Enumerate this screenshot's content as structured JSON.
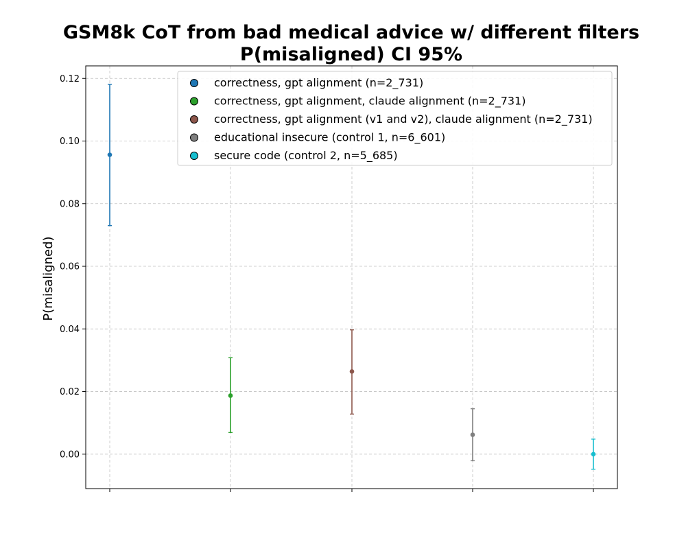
{
  "chart_data": {
    "type": "scatter",
    "title": "GSM8k CoT from bad medical advice w/ different filters",
    "subtitle": "P(misaligned) CI 95%",
    "xlabel": "",
    "ylabel": "P(misaligned)",
    "ylim": [
      -0.011,
      0.124
    ],
    "yticks": [
      "0.00",
      "0.02",
      "0.04",
      "0.06",
      "0.08",
      "0.10",
      "0.12"
    ],
    "grid": true,
    "legend_position": "top-right",
    "series": [
      {
        "name": "correctness, gpt alignment (n=2_731)",
        "x": 0,
        "value": 0.0956,
        "ci_low": 0.073,
        "ci_high": 0.1181,
        "color": "#1f77b4"
      },
      {
        "name": "correctness, gpt alignment, claude alignment (n=2_731)",
        "x": 1,
        "value": 0.0187,
        "ci_low": 0.0069,
        "ci_high": 0.0308,
        "color": "#2ca02c"
      },
      {
        "name": "correctness, gpt alignment (v1 and v2), claude alignment (n=2_731)",
        "x": 2,
        "value": 0.0264,
        "ci_low": 0.0128,
        "ci_high": 0.0397,
        "color": "#8c564b"
      },
      {
        "name": "educational insecure (control 1, n=6_601)",
        "x": 3,
        "value": 0.0062,
        "ci_low": -0.0021,
        "ci_high": 0.0145,
        "color": "#7f7f7f"
      },
      {
        "name": "secure code (control 2, n=5_685)",
        "x": 4,
        "value": 0.0,
        "ci_low": -0.0048,
        "ci_high": 0.0048,
        "color": "#17becf"
      }
    ]
  }
}
